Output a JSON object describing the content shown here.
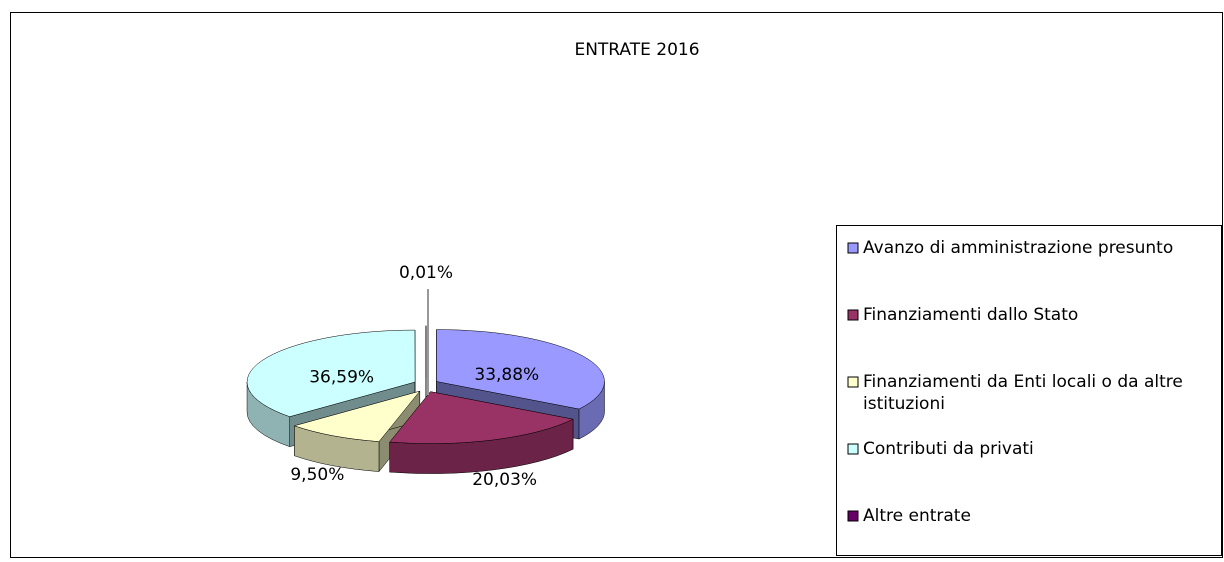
{
  "chart_data": {
    "type": "pie",
    "title": "ENTRATE 2016",
    "categories": [
      "Avanzo di amministrazione presunto",
      "Finanziamenti dallo Stato",
      "Finanziamenti da Enti locali o da altre istituzioni",
      "Contributi da privati",
      "Altre entrate"
    ],
    "values": [
      33.88,
      20.03,
      9.5,
      36.59,
      0.01
    ],
    "value_labels": [
      "33,88%",
      "20,03%",
      "9,50%",
      "36,59%",
      "0,01%"
    ],
    "colors": [
      "#9999ff",
      "#993366",
      "#ffffcc",
      "#ccffff",
      "#660066"
    ],
    "legend": "right"
  }
}
